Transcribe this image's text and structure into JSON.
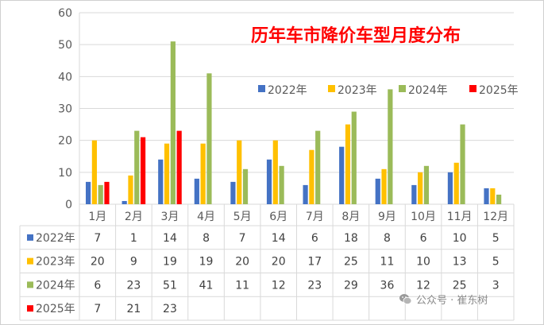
{
  "chart_data": {
    "type": "bar",
    "title": "历年车市降价车型月度分布",
    "categories": [
      "1月",
      "2月",
      "3月",
      "4月",
      "5月",
      "6月",
      "7月",
      "8月",
      "9月",
      "10月",
      "11月",
      "12月"
    ],
    "series": [
      {
        "name": "2022年",
        "color": "#4472C4",
        "values": [
          7,
          1,
          14,
          8,
          7,
          14,
          6,
          18,
          8,
          6,
          10,
          5
        ]
      },
      {
        "name": "2023年",
        "color": "#FFC000",
        "values": [
          20,
          9,
          19,
          19,
          20,
          20,
          17,
          25,
          11,
          10,
          13,
          5
        ]
      },
      {
        "name": "2024年",
        "color": "#9BBB59",
        "values": [
          6,
          23,
          51,
          41,
          11,
          12,
          23,
          29,
          36,
          12,
          25,
          3
        ]
      },
      {
        "name": "2025年",
        "color": "#FF0000",
        "values": [
          7,
          21,
          23,
          null,
          null,
          null,
          null,
          null,
          null,
          null,
          null,
          null
        ]
      }
    ],
    "ylim": [
      0,
      60
    ],
    "yticks": [
      0,
      10,
      20,
      30,
      40,
      50,
      60
    ],
    "legend_position": "top-right",
    "grid": true,
    "data_table": true,
    "title_color": "#FF0000"
  },
  "watermark": {
    "text": "公众号 · 崔东树",
    "icon": "wechat-icon"
  }
}
